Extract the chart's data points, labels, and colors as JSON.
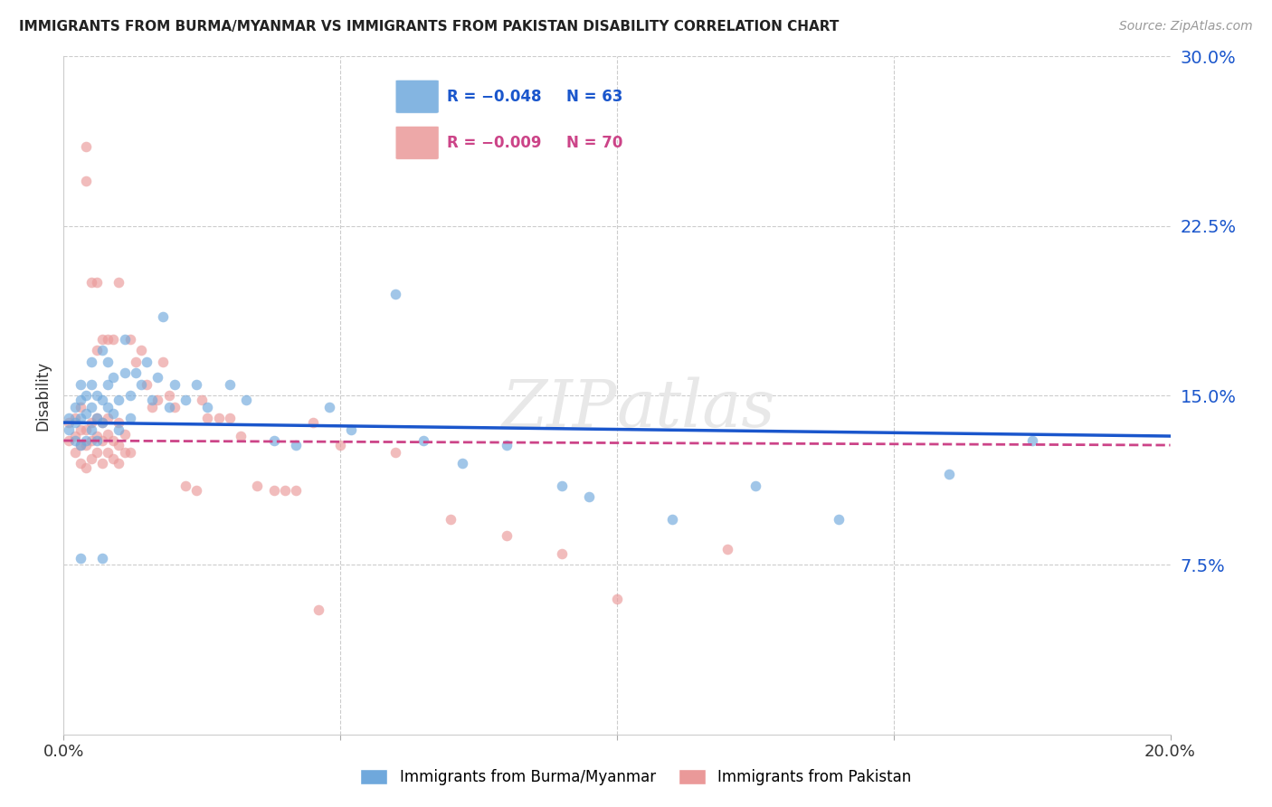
{
  "title": "IMMIGRANTS FROM BURMA/MYANMAR VS IMMIGRANTS FROM PAKISTAN DISABILITY CORRELATION CHART",
  "source": "Source: ZipAtlas.com",
  "ylabel": "Disability",
  "xlim": [
    0.0,
    0.2
  ],
  "ylim": [
    0.0,
    0.3
  ],
  "yticks": [
    0.075,
    0.15,
    0.225,
    0.3
  ],
  "ytick_labels": [
    "7.5%",
    "15.0%",
    "22.5%",
    "30.0%"
  ],
  "blue_color": "#6fa8dc",
  "pink_color": "#ea9999",
  "blue_line_color": "#1a56cc",
  "pink_line_color": "#cc4488",
  "scatter_alpha": 0.65,
  "scatter_size": 70,
  "blue_x": [
    0.001,
    0.001,
    0.002,
    0.002,
    0.002,
    0.003,
    0.003,
    0.003,
    0.003,
    0.004,
    0.004,
    0.004,
    0.005,
    0.005,
    0.005,
    0.005,
    0.006,
    0.006,
    0.006,
    0.007,
    0.007,
    0.007,
    0.008,
    0.008,
    0.008,
    0.009,
    0.009,
    0.01,
    0.01,
    0.011,
    0.011,
    0.012,
    0.012,
    0.013,
    0.014,
    0.015,
    0.016,
    0.017,
    0.018,
    0.019,
    0.02,
    0.022,
    0.024,
    0.026,
    0.03,
    0.033,
    0.038,
    0.042,
    0.048,
    0.052,
    0.06,
    0.065,
    0.072,
    0.08,
    0.09,
    0.095,
    0.11,
    0.125,
    0.14,
    0.16,
    0.175,
    0.003,
    0.007
  ],
  "blue_y": [
    0.135,
    0.14,
    0.13,
    0.138,
    0.145,
    0.128,
    0.14,
    0.148,
    0.155,
    0.13,
    0.142,
    0.15,
    0.135,
    0.145,
    0.155,
    0.165,
    0.13,
    0.14,
    0.15,
    0.138,
    0.148,
    0.17,
    0.145,
    0.155,
    0.165,
    0.142,
    0.158,
    0.135,
    0.148,
    0.16,
    0.175,
    0.14,
    0.15,
    0.16,
    0.155,
    0.165,
    0.148,
    0.158,
    0.185,
    0.145,
    0.155,
    0.148,
    0.155,
    0.145,
    0.155,
    0.148,
    0.13,
    0.128,
    0.145,
    0.135,
    0.195,
    0.13,
    0.12,
    0.128,
    0.11,
    0.105,
    0.095,
    0.11,
    0.095,
    0.115,
    0.13,
    0.078,
    0.078
  ],
  "pink_x": [
    0.001,
    0.001,
    0.002,
    0.002,
    0.002,
    0.003,
    0.003,
    0.003,
    0.003,
    0.004,
    0.004,
    0.004,
    0.005,
    0.005,
    0.005,
    0.006,
    0.006,
    0.006,
    0.007,
    0.007,
    0.007,
    0.008,
    0.008,
    0.008,
    0.009,
    0.009,
    0.01,
    0.01,
    0.01,
    0.011,
    0.011,
    0.012,
    0.013,
    0.014,
    0.015,
    0.016,
    0.017,
    0.018,
    0.019,
    0.02,
    0.022,
    0.024,
    0.026,
    0.03,
    0.035,
    0.04,
    0.045,
    0.05,
    0.06,
    0.07,
    0.08,
    0.09,
    0.1,
    0.12,
    0.025,
    0.028,
    0.032,
    0.038,
    0.042,
    0.046,
    0.004,
    0.004,
    0.005,
    0.006,
    0.006,
    0.007,
    0.008,
    0.009,
    0.01,
    0.012
  ],
  "pink_y": [
    0.13,
    0.138,
    0.125,
    0.132,
    0.14,
    0.12,
    0.128,
    0.135,
    0.145,
    0.118,
    0.128,
    0.135,
    0.122,
    0.13,
    0.138,
    0.125,
    0.132,
    0.14,
    0.12,
    0.13,
    0.138,
    0.125,
    0.133,
    0.14,
    0.122,
    0.13,
    0.12,
    0.128,
    0.138,
    0.125,
    0.133,
    0.175,
    0.165,
    0.17,
    0.155,
    0.145,
    0.148,
    0.165,
    0.15,
    0.145,
    0.11,
    0.108,
    0.14,
    0.14,
    0.11,
    0.108,
    0.138,
    0.128,
    0.125,
    0.095,
    0.088,
    0.08,
    0.06,
    0.082,
    0.148,
    0.14,
    0.132,
    0.108,
    0.108,
    0.055,
    0.26,
    0.245,
    0.2,
    0.2,
    0.17,
    0.175,
    0.175,
    0.175,
    0.2,
    0.125
  ]
}
